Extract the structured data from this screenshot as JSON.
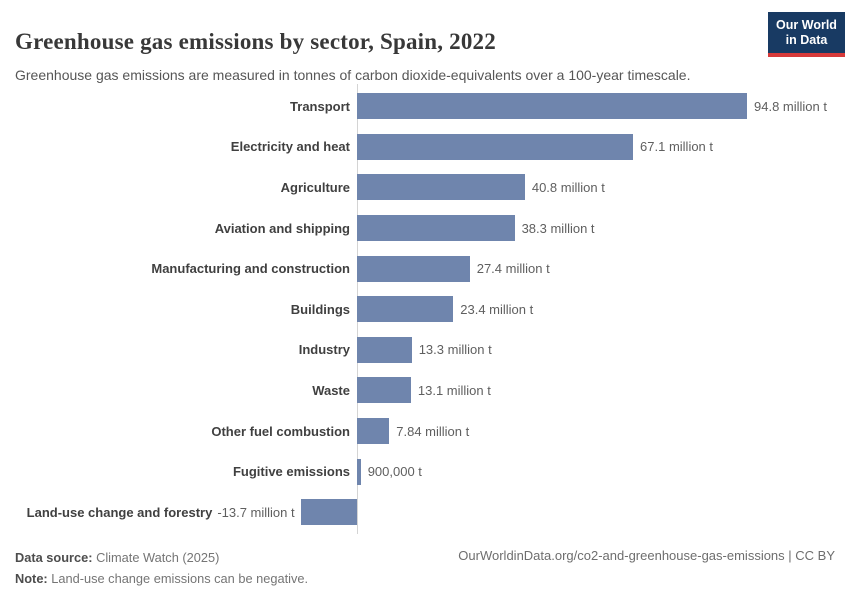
{
  "header": {
    "title": "Greenhouse gas emissions by sector, Spain, 2022",
    "subtitle": "Greenhouse gas emissions are measured in tonnes of carbon dioxide-equivalents over a 100-year timescale.",
    "logo_line1": "Our World",
    "logo_line2": "in Data",
    "logo_bg_color": "#183a63",
    "logo_accent_color": "#d73a3a"
  },
  "chart_data": {
    "type": "bar",
    "orientation": "horizontal",
    "title": "Greenhouse gas emissions by sector, Spain, 2022",
    "unit": "tonnes of carbon dioxide-equivalents",
    "categories": [
      "Transport",
      "Electricity and heat",
      "Agriculture",
      "Aviation and shipping",
      "Manufacturing and construction",
      "Buildings",
      "Industry",
      "Waste",
      "Other fuel combustion",
      "Fugitive emissions",
      "Land-use change and forestry"
    ],
    "values": [
      94.8,
      67.1,
      40.8,
      38.3,
      27.4,
      23.4,
      13.3,
      13.1,
      7.84,
      0.9,
      -13.7
    ],
    "value_labels": [
      "94.8 million t",
      "67.1 million t",
      "40.8 million t",
      "38.3 million t",
      "27.4 million t",
      "23.4 million t",
      "13.3 million t",
      "13.1 million t",
      "7.84 million t",
      "900,000 t",
      "-13.7 million t"
    ],
    "xlim": [
      -13.7,
      94.8
    ],
    "grid": false,
    "legend": "none",
    "bar_color": "#6f85ad",
    "axis_color": "#d4d4d4",
    "label_color": "#404040",
    "value_color": "#5f5f5f"
  },
  "footer": {
    "data_source_label": "Data source:",
    "data_source_value": " Climate Watch (2025)",
    "note_label": "Note:",
    "note_value": " Land-use change emissions can be negative.",
    "citation": "OurWorldinData.org/co2-and-greenhouse-gas-emissions | CC BY"
  }
}
